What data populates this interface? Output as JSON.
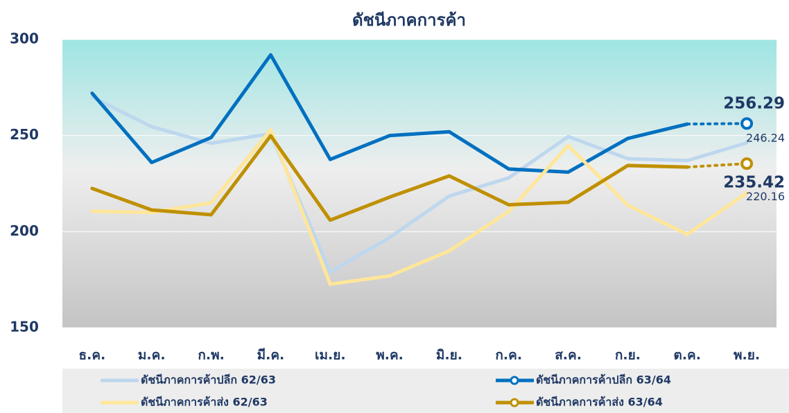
{
  "chart_data": {
    "type": "line",
    "title": "ดัชนีภาคการค้า",
    "categories": [
      "ธ.ค.",
      "ม.ค.",
      "ก.พ.",
      "มี.ค.",
      "เม.ย.",
      "พ.ค.",
      "มิ.ย.",
      "ก.ค.",
      "ส.ค.",
      "ก.ย.",
      "ต.ค.",
      "พ.ย."
    ],
    "ylim": [
      150,
      300
    ],
    "yticks": [
      150,
      200,
      250,
      300
    ],
    "grid": true,
    "series": [
      {
        "name": "ดัชนีภาคการค้าปลีก 62/63",
        "color": "#bdd7ee",
        "markers": false,
        "values": [
          270,
          254.6,
          246,
          251,
          179,
          197,
          218.5,
          228,
          249.5,
          238,
          237,
          246.24
        ]
      },
      {
        "name": "ดัชนีภาคการค้าปลีก 63/64",
        "color": "#0070c0",
        "markers": true,
        "values": [
          272,
          236,
          249,
          292,
          237.6,
          250,
          252,
          232.6,
          231,
          248.5,
          256,
          256.29
        ]
      },
      {
        "name": "ดัชนีภาคการค้าส่ง 62/63",
        "color": "#ffe699",
        "markers": false,
        "values": [
          210.6,
          210,
          215,
          253,
          172.7,
          177,
          190,
          210.5,
          244.8,
          213.8,
          198.6,
          220.16
        ]
      },
      {
        "name": "ดัชนีภาคการค้าส่ง 63/64",
        "color": "#bf9000",
        "markers": true,
        "values": [
          222.5,
          211.3,
          208.8,
          249.9,
          206,
          218,
          229,
          214,
          215.3,
          234.4,
          233.6,
          235.42
        ]
      }
    ]
  }
}
